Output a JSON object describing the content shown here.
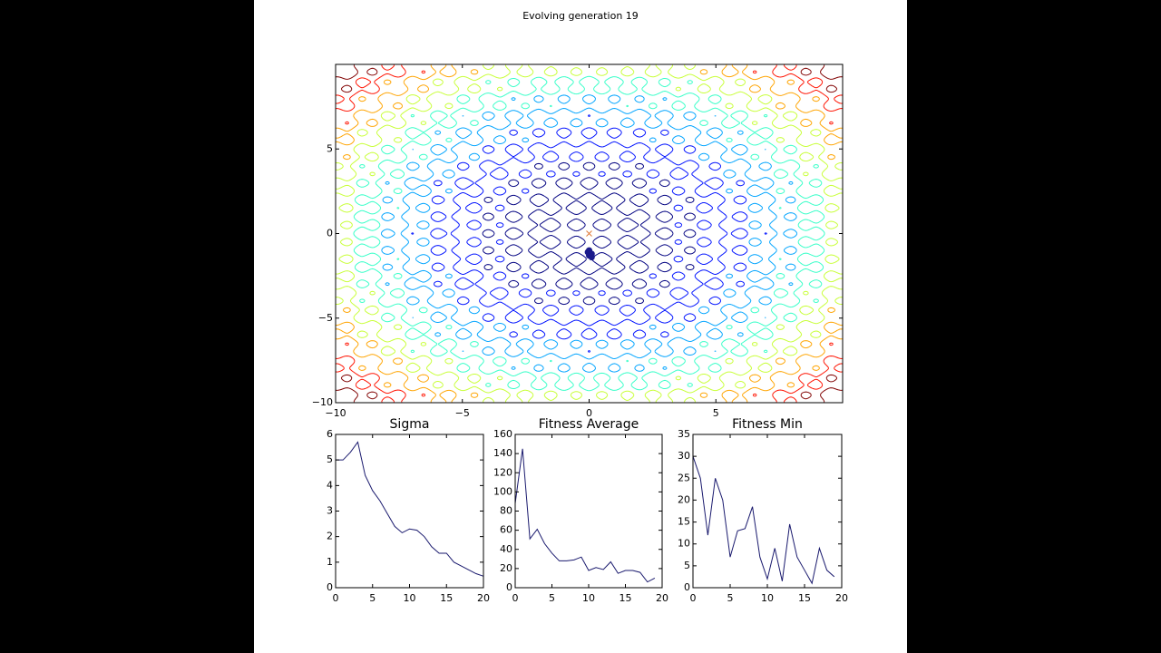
{
  "figure_title": "Evolving generation 19",
  "chart_data": [
    {
      "type": "scatter",
      "x": [
        0.0,
        0.05,
        -0.05,
        0.1,
        0.0,
        0.1
      ],
      "y": [
        -1.0,
        -1.2,
        -1.1,
        -1.4,
        -1.3,
        -1.2
      ],
      "color": "#1a1a8c",
      "target": {
        "x": 0,
        "y": 0,
        "color": "#e07b39"
      },
      "xlim": [
        -10,
        10
      ],
      "ylim": [
        -10,
        10
      ],
      "xticks": [
        {
          "value": -10,
          "label": "−10"
        },
        {
          "value": -5,
          "label": "−5"
        },
        0,
        5
      ],
      "yticks": [
        {
          "value": -10,
          "label": "−10"
        },
        {
          "value": -5,
          "label": "−5"
        },
        0,
        5
      ]
    },
    {
      "type": "line",
      "title": "Sigma",
      "color": "#1a1a6e",
      "x": [
        0,
        1,
        2,
        3,
        4,
        5,
        6,
        7,
        8,
        9,
        10,
        11,
        12,
        13,
        14,
        15,
        16,
        17,
        18,
        19,
        20
      ],
      "values": [
        5.0,
        5.0,
        5.3,
        5.7,
        4.4,
        3.8,
        3.4,
        2.9,
        2.4,
        2.15,
        2.3,
        2.25,
        2.0,
        1.6,
        1.35,
        1.35,
        1.0,
        0.85,
        0.7,
        0.55,
        0.45
      ],
      "xlim": [
        0,
        20
      ],
      "ylim": [
        0,
        6
      ],
      "xticks": [
        0,
        5,
        10,
        15,
        20
      ],
      "yticks": [
        0,
        1,
        2,
        3,
        4,
        5,
        6
      ]
    },
    {
      "type": "line",
      "title": "Fitness Average",
      "color": "#1a1a6e",
      "x": [
        0,
        1,
        2,
        3,
        4,
        5,
        6,
        7,
        8,
        9,
        10,
        11,
        12,
        13,
        14,
        15,
        16,
        17,
        18,
        19
      ],
      "values": [
        88,
        145,
        51,
        61,
        46,
        36,
        28,
        28,
        29,
        32,
        18,
        21,
        19,
        27,
        15,
        18,
        18,
        16,
        6,
        10
      ],
      "xlim": [
        0,
        20
      ],
      "ylim": [
        0,
        160
      ],
      "xticks": [
        0,
        5,
        10,
        15,
        20
      ],
      "yticks": [
        0,
        20,
        40,
        60,
        80,
        100,
        120,
        140,
        160
      ]
    },
    {
      "type": "line",
      "title": "Fitness Min",
      "color": "#1a1a6e",
      "x": [
        0,
        1,
        2,
        3,
        4,
        5,
        6,
        7,
        8,
        9,
        10,
        11,
        12,
        13,
        14,
        15,
        16,
        17,
        18,
        19
      ],
      "values": [
        30,
        25,
        12,
        25,
        20,
        7,
        13,
        13.5,
        18.5,
        7,
        2,
        9,
        1.5,
        14.5,
        7,
        4,
        1,
        9,
        4,
        2.5
      ],
      "xlim": [
        0,
        20
      ],
      "ylim": [
        0,
        35
      ],
      "xticks": [
        0,
        5,
        10,
        15,
        20
      ],
      "yticks": [
        0,
        5,
        10,
        15,
        20,
        25,
        30,
        35
      ]
    }
  ]
}
